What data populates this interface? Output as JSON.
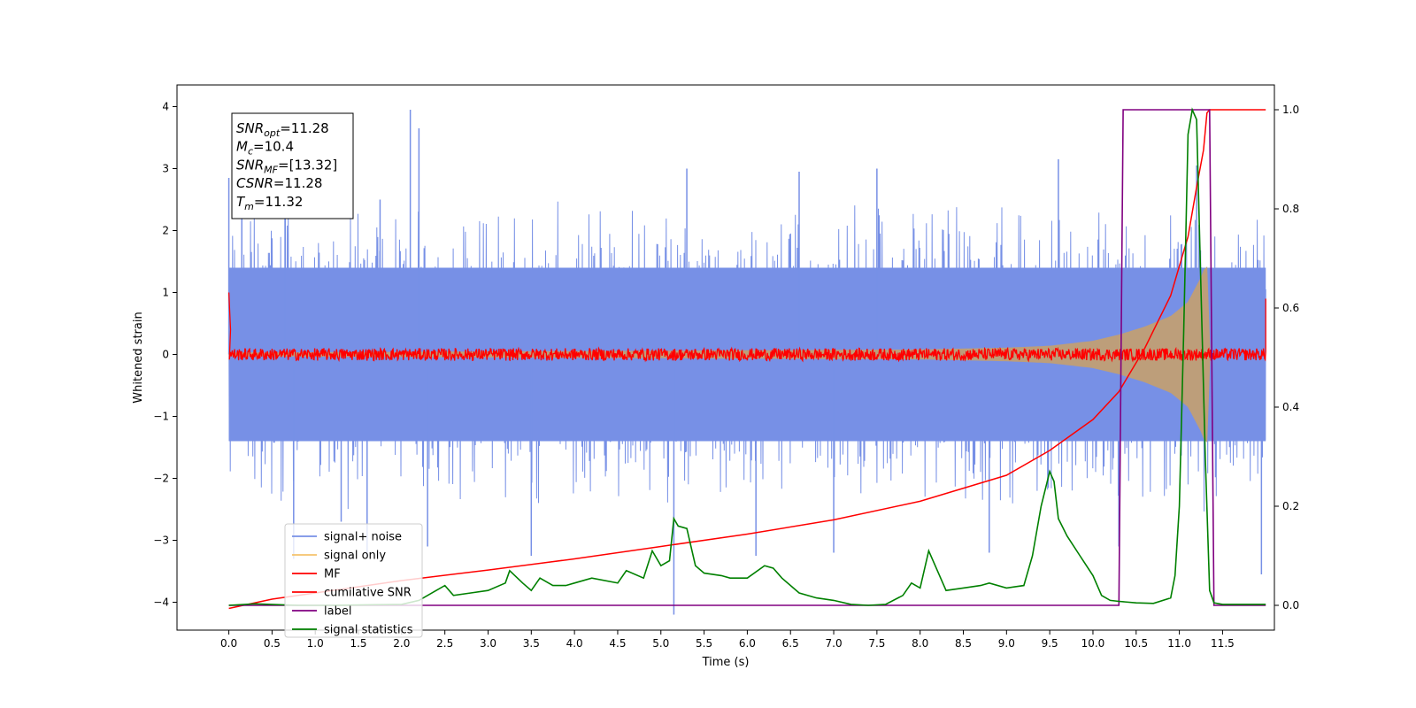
{
  "chart_data": {
    "type": "line",
    "xlabel": "Time (s)",
    "ylabel": "Whitened strain",
    "xlim": [
      -0.6,
      12.1
    ],
    "ylim": [
      -4.45,
      4.35
    ],
    "y2lim": [
      -0.05,
      1.05
    ],
    "xticks": [
      0.0,
      0.5,
      1.0,
      1.5,
      2.0,
      2.5,
      3.0,
      3.5,
      4.0,
      4.5,
      5.0,
      5.5,
      6.0,
      6.5,
      7.0,
      7.5,
      8.0,
      8.5,
      9.0,
      9.5,
      10.0,
      10.5,
      11.0,
      11.5
    ],
    "xtick_labels": [
      "0.0",
      "0.5",
      "1.0",
      "1.5",
      "2.0",
      "2.5",
      "3.0",
      "3.5",
      "4.0",
      "4.5",
      "5.0",
      "5.5",
      "6.0",
      "6.5",
      "7.0",
      "7.5",
      "8.0",
      "8.5",
      "9.0",
      "9.5",
      "10.0",
      "10.5",
      "11.0",
      "11.5"
    ],
    "yticks": [
      -4,
      -3,
      -2,
      -1,
      0,
      1,
      2,
      3,
      4
    ],
    "ytick_labels": [
      "−4",
      "−3",
      "−2",
      "−1",
      "0",
      "1",
      "2",
      "3",
      "4"
    ],
    "y2ticks": [
      0.0,
      0.2,
      0.4,
      0.6,
      0.8,
      1.0
    ],
    "y2tick_labels": [
      "0.0",
      "0.2",
      "0.4",
      "0.6",
      "0.8",
      "1.0"
    ],
    "legend_position": "lower-left",
    "grid": false,
    "annotation": {
      "lines": [
        {
          "sym": "SNR",
          "sub": "opt",
          "val": "=11.28"
        },
        {
          "sym": "M",
          "sub": "c",
          "val": "=10.4"
        },
        {
          "sym": "SNR",
          "sub": "MF",
          "val": "=[13.32]"
        },
        {
          "sym": "CSNR",
          "sub": "",
          "val": "=11.28"
        },
        {
          "sym": "T",
          "sub": "m",
          "val": "=11.32"
        }
      ]
    },
    "series": [
      {
        "name": "signal+ noise",
        "color": "#7790e6",
        "axis": "left",
        "kind": "noise-band",
        "x_range": [
          0.0,
          12.0
        ],
        "core": 1.4,
        "peak": 2.6,
        "spikes": [
          [
            0.0,
            2.85
          ],
          [
            0.15,
            2.5
          ],
          [
            0.65,
            2.9
          ],
          [
            0.75,
            -3.3
          ],
          [
            1.3,
            -2.7
          ],
          [
            1.6,
            -3.25
          ],
          [
            1.75,
            2.5
          ],
          [
            2.1,
            3.95
          ],
          [
            2.2,
            3.65
          ],
          [
            2.3,
            -3.1
          ],
          [
            3.5,
            -3.25
          ],
          [
            5.15,
            -4.2
          ],
          [
            5.3,
            3.0
          ],
          [
            6.1,
            -3.25
          ],
          [
            6.6,
            2.95
          ],
          [
            7.0,
            -3.2
          ],
          [
            7.5,
            3.0
          ],
          [
            8.8,
            -3.2
          ],
          [
            9.6,
            3.15
          ],
          [
            10.3,
            -3.1
          ],
          [
            11.2,
            3.05
          ],
          [
            11.95,
            -3.55
          ]
        ]
      },
      {
        "name": "signal only",
        "color": "#f5c36b",
        "axis": "left",
        "kind": "chirp",
        "x": [
          0.0,
          8.0,
          9.0,
          9.5,
          10.0,
          10.3,
          10.6,
          10.9,
          11.1,
          11.25,
          11.32,
          11.36
        ],
        "amp": [
          0.03,
          0.08,
          0.11,
          0.14,
          0.22,
          0.32,
          0.45,
          0.62,
          0.85,
          1.25,
          1.5,
          0.0
        ]
      },
      {
        "name": "MF",
        "color": "#ff0000",
        "axis": "left",
        "kind": "mf-noise",
        "x_range": [
          0.0,
          12.0
        ],
        "amplitude": 0.1,
        "edges": [
          [
            0.0,
            1.0
          ],
          [
            0.02,
            0.4
          ],
          [
            12.0,
            0.9
          ]
        ]
      },
      {
        "name": "cumilative SNR",
        "color": "#ff0000",
        "axis": "left",
        "x": [
          0.0,
          0.5,
          1.0,
          2.0,
          3.0,
          4.0,
          5.0,
          6.0,
          7.0,
          8.0,
          9.0,
          9.5,
          10.0,
          10.3,
          10.6,
          10.9,
          11.1,
          11.2,
          11.28,
          11.32,
          11.35,
          12.0
        ],
        "y": [
          -4.1,
          -3.95,
          -3.85,
          -3.65,
          -3.48,
          -3.3,
          -3.1,
          -2.9,
          -2.67,
          -2.37,
          -1.95,
          -1.55,
          -1.05,
          -0.6,
          0.1,
          0.95,
          1.9,
          2.7,
          3.3,
          3.9,
          3.95,
          3.95
        ]
      },
      {
        "name": "label",
        "color": "#800080",
        "axis": "right",
        "x": [
          0.0,
          10.3,
          10.35,
          11.35,
          11.4,
          12.0
        ],
        "y": [
          0.0,
          0.0,
          1.0,
          1.0,
          0.0,
          0.0
        ]
      },
      {
        "name": "signal statistics",
        "color": "#008000",
        "axis": "right",
        "x": [
          0.0,
          0.3,
          0.8,
          1.2,
          1.6,
          2.0,
          2.2,
          2.4,
          2.5,
          2.6,
          2.8,
          3.0,
          3.2,
          3.25,
          3.4,
          3.5,
          3.6,
          3.75,
          3.9,
          4.0,
          4.2,
          4.5,
          4.6,
          4.8,
          4.9,
          5.0,
          5.1,
          5.15,
          5.2,
          5.3,
          5.4,
          5.5,
          5.7,
          5.8,
          6.0,
          6.2,
          6.3,
          6.4,
          6.6,
          6.8,
          7.0,
          7.2,
          7.4,
          7.6,
          7.8,
          7.9,
          8.0,
          8.1,
          8.2,
          8.3,
          8.5,
          8.7,
          8.8,
          9.0,
          9.2,
          9.3,
          9.4,
          9.5,
          9.55,
          9.6,
          9.7,
          9.85,
          10.0,
          10.1,
          10.2,
          10.3,
          10.5,
          10.7,
          10.9,
          10.95,
          11.0,
          11.05,
          11.1,
          11.15,
          11.2,
          11.3,
          11.35,
          11.4,
          11.5,
          12.0
        ],
        "y": [
          0.0,
          0.003,
          0.0,
          0.0,
          0.001,
          0.002,
          0.01,
          0.03,
          0.04,
          0.02,
          0.025,
          0.03,
          0.045,
          0.07,
          0.045,
          0.03,
          0.055,
          0.04,
          0.04,
          0.045,
          0.055,
          0.045,
          0.07,
          0.055,
          0.11,
          0.08,
          0.09,
          0.175,
          0.16,
          0.155,
          0.08,
          0.065,
          0.06,
          0.055,
          0.055,
          0.08,
          0.075,
          0.055,
          0.025,
          0.015,
          0.01,
          0.002,
          0.0,
          0.002,
          0.02,
          0.045,
          0.035,
          0.11,
          0.07,
          0.03,
          0.035,
          0.04,
          0.045,
          0.035,
          0.04,
          0.1,
          0.2,
          0.27,
          0.25,
          0.175,
          0.14,
          0.1,
          0.06,
          0.02,
          0.01,
          0.008,
          0.005,
          0.004,
          0.015,
          0.06,
          0.2,
          0.55,
          0.95,
          1.0,
          0.98,
          0.3,
          0.03,
          0.005,
          0.002,
          0.002
        ]
      }
    ]
  }
}
